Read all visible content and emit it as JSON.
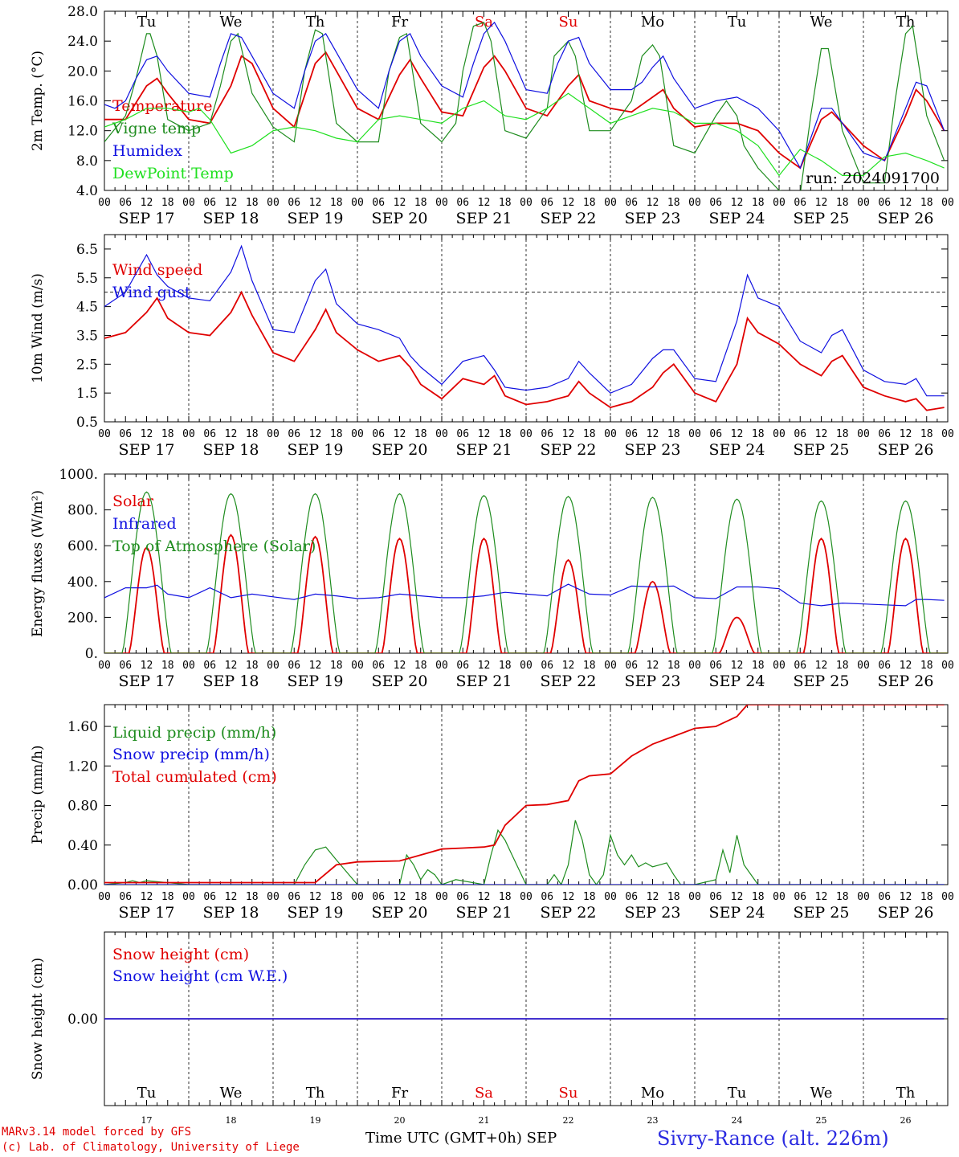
{
  "footer": {
    "model": "MARv3.14 model forced by GFS",
    "copyright": "(c) Lab. of Climatology, University of Liege",
    "time_label": "Time UTC (GMT+0h)",
    "month": "SEP",
    "station": "Sivry-Rance (alt. 226m)"
  },
  "hour_ticks": [
    "00",
    "06",
    "12",
    "18"
  ],
  "dates": [
    "SEP 17",
    "SEP 18",
    "SEP 19",
    "SEP 20",
    "SEP 21",
    "SEP 22",
    "SEP 23",
    "SEP 24",
    "SEP 25",
    "SEP 26"
  ],
  "weekdays": [
    "Tu",
    "We",
    "Th",
    "Fr",
    "Sa",
    "Su",
    "Mo",
    "Tu",
    "We",
    "Th"
  ],
  "weekday_colors": [
    "#000000",
    "#000000",
    "#000000",
    "#000000",
    "#e00000",
    "#e00000",
    "#000000",
    "#000000",
    "#000000",
    "#000000"
  ],
  "day_numbers": [
    "17",
    "18",
    "19",
    "20",
    "21",
    "22",
    "23",
    "24",
    "25",
    "26"
  ],
  "colors": {
    "red": "#e00000",
    "green": "#1e8c1e",
    "blue": "#1010e0",
    "lightgreen": "#20e020",
    "purple": "#7a3a9a"
  },
  "chart_data": [
    {
      "type": "line",
      "ylabel": "2m Temp. (°C)",
      "ylim": [
        4.0,
        28.0
      ],
      "yticks": [
        "4.0",
        "8.0",
        "12.0",
        "16.0",
        "20.0",
        "24.0",
        "28.0"
      ],
      "run_label": "run: 2024091700",
      "x_unit": "hours since 2024-09-17 00 UTC",
      "series": [
        {
          "name": "Temperature",
          "color": "red",
          "x": [
            0,
            6,
            12,
            15,
            18,
            24,
            30,
            36,
            39,
            42,
            48,
            54,
            60,
            63,
            66,
            72,
            78,
            84,
            87,
            90,
            96,
            102,
            108,
            111,
            114,
            120,
            126,
            132,
            135,
            138,
            144,
            150,
            156,
            159,
            162,
            168,
            174,
            180,
            183,
            186,
            192,
            198,
            204,
            207,
            210,
            216,
            222,
            228,
            231,
            234,
            239
          ],
          "y": [
            13.5,
            13.5,
            18,
            19,
            17,
            13.5,
            13,
            18,
            22,
            21,
            15,
            12.5,
            21,
            22.5,
            20,
            15,
            13.5,
            19.5,
            21.5,
            19,
            14.5,
            14,
            20.5,
            22,
            20,
            15,
            14,
            18,
            19.5,
            16,
            15,
            14.5,
            16.5,
            17.5,
            15,
            12.5,
            13,
            13,
            12.5,
            12,
            9,
            7,
            13.5,
            14.5,
            13,
            10,
            8,
            14,
            17.5,
            16,
            12
          ]
        },
        {
          "name": "Vigne temp",
          "color": "green",
          "x": [
            0,
            6,
            9,
            12,
            13,
            15,
            18,
            24,
            30,
            33,
            36,
            38,
            42,
            48,
            54,
            57,
            60,
            62,
            66,
            72,
            78,
            81,
            84,
            86,
            90,
            96,
            100,
            102,
            105,
            108,
            110,
            114,
            120,
            126,
            128,
            132,
            134,
            138,
            144,
            150,
            153,
            156,
            158,
            162,
            168,
            174,
            177,
            180,
            182,
            186,
            192,
            198,
            201,
            204,
            206,
            210,
            216,
            222,
            225,
            228,
            230,
            234,
            239
          ],
          "y": [
            10.5,
            14,
            19,
            25,
            25,
            22,
            13.5,
            12,
            13,
            18,
            24,
            25,
            17,
            12.5,
            10.5,
            20,
            25.5,
            25,
            13,
            10.5,
            10.5,
            20,
            24.5,
            25,
            13,
            10.5,
            13,
            20,
            26,
            26.5,
            24,
            12,
            11,
            15,
            22,
            24,
            22,
            12,
            12,
            16,
            22,
            23.5,
            22,
            10,
            9,
            14,
            16,
            14,
            10,
            7,
            4,
            3.5,
            14,
            23,
            23,
            12,
            5,
            5,
            16,
            25,
            26,
            14,
            8
          ]
        },
        {
          "name": "Humidex",
          "color": "blue",
          "x": [
            0,
            3,
            6,
            9,
            12,
            15,
            18,
            24,
            30,
            33,
            36,
            39,
            42,
            48,
            54,
            57,
            60,
            63,
            66,
            72,
            78,
            81,
            84,
            87,
            90,
            96,
            102,
            105,
            108,
            111,
            114,
            120,
            126,
            129,
            132,
            135,
            138,
            144,
            150,
            153,
            156,
            159,
            162,
            168,
            174,
            180,
            186,
            192,
            198,
            201,
            204,
            207,
            210,
            216,
            222,
            228,
            231,
            234,
            239
          ],
          "y": [
            15.5,
            15,
            16,
            19,
            21.5,
            22,
            20,
            17,
            16.5,
            21,
            25,
            24.5,
            22,
            17,
            15,
            20,
            24,
            25,
            22.5,
            17.5,
            15,
            20,
            24,
            25,
            22,
            18,
            16.5,
            21,
            25,
            26.5,
            24,
            17.5,
            17,
            21,
            24,
            24.5,
            21,
            17.5,
            17.5,
            18.5,
            20.5,
            22,
            19,
            15,
            16,
            16.5,
            15,
            12,
            7,
            11,
            15,
            15,
            13,
            9,
            8,
            15,
            18.5,
            18,
            12
          ]
        },
        {
          "name": "DewPoint Temp",
          "color": "lightgreen",
          "x": [
            0,
            6,
            12,
            18,
            24,
            27,
            30,
            36,
            42,
            48,
            54,
            60,
            66,
            72,
            78,
            84,
            90,
            96,
            102,
            108,
            114,
            120,
            126,
            132,
            138,
            144,
            150,
            156,
            162,
            168,
            174,
            180,
            186,
            192,
            198,
            204,
            210,
            216,
            222,
            228,
            234,
            239
          ],
          "y": [
            12.5,
            13.5,
            15,
            15,
            14.5,
            15,
            13.5,
            9,
            10,
            12,
            12.5,
            12,
            11,
            10.5,
            13.5,
            14,
            13.5,
            13,
            15,
            16,
            14,
            13.5,
            15,
            17,
            15,
            13,
            14,
            15,
            14.5,
            13,
            13,
            12,
            10,
            6,
            9.5,
            8,
            6,
            6,
            8.5,
            9,
            8,
            7
          ]
        }
      ]
    },
    {
      "type": "line",
      "ylabel": "10m Wind (m/s)",
      "ylim": [
        0.5,
        7.0
      ],
      "yticks": [
        "0.5",
        "1.5",
        "2.5",
        "3.5",
        "4.5",
        "5.5",
        "6.5"
      ],
      "reference_line": 5.0,
      "x_unit": "hours since 2024-09-17 00 UTC",
      "series": [
        {
          "name": "Wind speed",
          "color": "red",
          "x": [
            0,
            6,
            12,
            15,
            18,
            24,
            30,
            36,
            39,
            42,
            48,
            54,
            60,
            63,
            66,
            72,
            78,
            84,
            87,
            90,
            96,
            102,
            108,
            111,
            114,
            120,
            126,
            132,
            135,
            138,
            144,
            150,
            156,
            159,
            162,
            168,
            174,
            180,
            183,
            186,
            192,
            198,
            204,
            207,
            210,
            216,
            222,
            228,
            231,
            234,
            239
          ],
          "y": [
            3.4,
            3.6,
            4.3,
            4.8,
            4.1,
            3.6,
            3.5,
            4.3,
            5,
            4.2,
            2.9,
            2.6,
            3.7,
            4.4,
            3.6,
            3,
            2.6,
            2.8,
            2.4,
            1.8,
            1.3,
            2,
            1.8,
            2.1,
            1.4,
            1.1,
            1.2,
            1.4,
            1.9,
            1.5,
            1,
            1.2,
            1.7,
            2.2,
            2.5,
            1.5,
            1.2,
            2.5,
            4.1,
            3.6,
            3.2,
            2.5,
            2.1,
            2.6,
            2.8,
            1.7,
            1.4,
            1.2,
            1.3,
            0.9,
            1
          ]
        },
        {
          "name": "Wind gust",
          "color": "blue",
          "x": [
            0,
            6,
            12,
            15,
            18,
            24,
            30,
            36,
            39,
            42,
            48,
            54,
            60,
            63,
            66,
            72,
            78,
            84,
            87,
            90,
            96,
            102,
            108,
            111,
            114,
            120,
            126,
            132,
            135,
            138,
            144,
            150,
            156,
            159,
            162,
            168,
            174,
            180,
            183,
            186,
            192,
            198,
            204,
            207,
            210,
            216,
            222,
            228,
            231,
            234,
            239
          ],
          "y": [
            4.5,
            5,
            6.3,
            5.6,
            5.2,
            4.8,
            4.7,
            5.7,
            6.6,
            5.4,
            3.7,
            3.6,
            5.4,
            5.8,
            4.6,
            3.9,
            3.7,
            3.4,
            2.8,
            2.4,
            1.8,
            2.6,
            2.8,
            2.3,
            1.7,
            1.6,
            1.7,
            2,
            2.6,
            2.2,
            1.5,
            1.8,
            2.7,
            3,
            3,
            2,
            1.9,
            4,
            5.6,
            4.8,
            4.5,
            3.3,
            2.9,
            3.5,
            3.7,
            2.3,
            1.9,
            1.8,
            2,
            1.4,
            1.4
          ]
        }
      ]
    },
    {
      "type": "line",
      "ylabel": "Energy fluxes (W/m²)",
      "ylim": [
        0,
        1000
      ],
      "yticks": [
        "0.",
        "200.",
        "400.",
        "600.",
        "800.",
        "1000."
      ],
      "x_unit": "hours since 2024-09-17 00 UTC",
      "daily_peaks": {
        "solar": [
          590,
          660,
          650,
          640,
          640,
          520,
          400,
          200,
          640,
          640
        ],
        "toa": [
          900,
          890,
          890,
          890,
          880,
          875,
          870,
          860,
          850,
          850
        ]
      },
      "series": [
        {
          "name": "Solar",
          "color": "red"
        },
        {
          "name": "Infrared",
          "color": "blue",
          "x": [
            0,
            6,
            12,
            15,
            18,
            24,
            30,
            36,
            42,
            48,
            54,
            60,
            66,
            72,
            78,
            84,
            90,
            96,
            102,
            108,
            114,
            120,
            126,
            132,
            138,
            144,
            150,
            156,
            162,
            168,
            174,
            180,
            186,
            192,
            198,
            204,
            210,
            216,
            222,
            228,
            231,
            234,
            239
          ],
          "y": [
            310,
            365,
            365,
            380,
            330,
            310,
            365,
            310,
            330,
            315,
            300,
            330,
            320,
            305,
            310,
            330,
            320,
            310,
            310,
            320,
            340,
            330,
            320,
            385,
            330,
            325,
            375,
            370,
            375,
            310,
            305,
            370,
            370,
            360,
            280,
            265,
            280,
            275,
            270,
            265,
            300,
            300,
            295
          ]
        },
        {
          "name": "Top of Atmosphere (Solar)",
          "color": "green"
        }
      ]
    },
    {
      "type": "line",
      "ylabel": "Precip (mm/h)",
      "ylim": [
        0,
        1.82
      ],
      "yticks": [
        "0.00",
        "0.40",
        "0.80",
        "1.20",
        "1.60"
      ],
      "x_unit": "hours since 2024-09-17 00 UTC",
      "series": [
        {
          "name": "Liquid precip (mm/h)",
          "color": "green",
          "x": [
            0,
            6,
            8,
            10,
            12,
            24,
            48,
            54,
            57,
            60,
            63,
            66,
            72,
            84,
            86,
            88,
            90,
            92,
            94,
            96,
            100,
            108,
            110,
            112,
            114,
            116,
            120,
            126,
            128,
            130,
            132,
            134,
            136,
            138,
            140,
            142,
            144,
            146,
            148,
            150,
            152,
            154,
            156,
            158,
            160,
            162,
            164,
            168,
            174,
            176,
            178,
            180,
            182,
            186,
            239
          ],
          "y": [
            0,
            0.02,
            0.04,
            0.02,
            0.04,
            0,
            0,
            0,
            0.2,
            0.35,
            0.38,
            0.25,
            0,
            0,
            0.3,
            0.2,
            0.05,
            0.15,
            0.1,
            0,
            0.05,
            0,
            0.3,
            0.55,
            0.45,
            0.3,
            0,
            0,
            0.1,
            0,
            0.2,
            0.65,
            0.45,
            0.1,
            0,
            0.1,
            0.5,
            0.3,
            0.2,
            0.3,
            0.18,
            0.22,
            0.18,
            0.2,
            0.22,
            0.1,
            0,
            0,
            0.05,
            0.35,
            0.12,
            0.5,
            0.2,
            0,
            0
          ]
        },
        {
          "name": "Snow precip (mm/h)",
          "color": "blue",
          "x": [
            0,
            239
          ],
          "y": [
            0,
            0
          ]
        },
        {
          "name": "Total cumulated (cm)",
          "color": "red",
          "x": [
            0,
            24,
            48,
            60,
            66,
            72,
            84,
            90,
            96,
            102,
            108,
            111,
            114,
            120,
            126,
            132,
            135,
            138,
            144,
            150,
            156,
            162,
            168,
            174,
            180,
            183,
            186,
            192,
            210,
            239
          ],
          "y": [
            0.02,
            0.02,
            0.02,
            0.02,
            0.2,
            0.23,
            0.24,
            0.3,
            0.36,
            0.37,
            0.38,
            0.4,
            0.6,
            0.8,
            0.81,
            0.85,
            1.05,
            1.1,
            1.12,
            1.3,
            1.42,
            1.5,
            1.58,
            1.6,
            1.7,
            1.82,
            1.82,
            1.82,
            1.82,
            1.82
          ]
        }
      ]
    },
    {
      "type": "line",
      "ylabel": "Snow height (cm)",
      "ylim": [
        -1,
        1
      ],
      "yticks": [
        "0.00"
      ],
      "x_unit": "hours since 2024-09-17 00 UTC",
      "series": [
        {
          "name": "Snow height (cm)",
          "color": "red",
          "x": [
            0,
            239
          ],
          "y": [
            0,
            0
          ]
        },
        {
          "name": "Snow height (cm W.E.)",
          "color": "blue",
          "x": [
            0,
            239
          ],
          "y": [
            0,
            0
          ]
        }
      ]
    }
  ]
}
